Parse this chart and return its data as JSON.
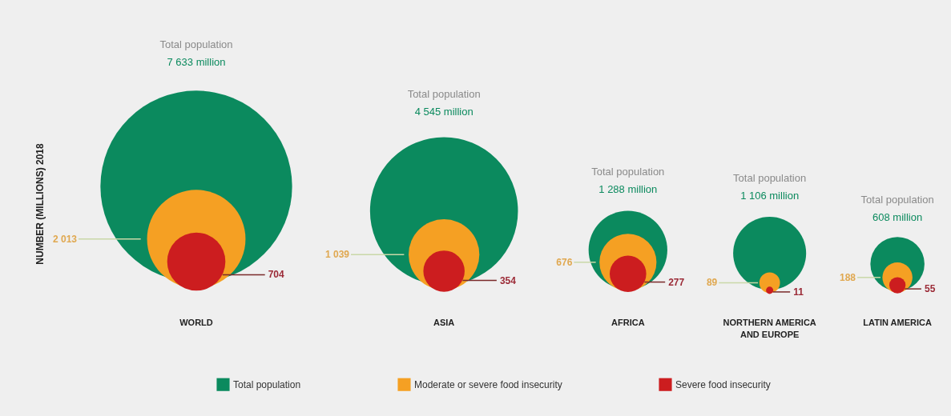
{
  "chart_data": {
    "type": "other",
    "ylabel": "NUMBER (MILLIONS) 2018",
    "categories": [
      "WORLD",
      "ASIA",
      "AFRICA",
      "NORTHERN AMERICA AND EUROPE",
      "LATIN AMERICA"
    ],
    "series": [
      {
        "name": "Total population",
        "color": "#0b8a5e",
        "values": [
          7633,
          4545,
          1288,
          1106,
          608
        ],
        "value_labels": [
          "7 633 million",
          "4 545 million",
          "1 288 million",
          "1 106 million",
          "608 million"
        ]
      },
      {
        "name": "Moderate or severe food insecurity",
        "color": "#f5a023",
        "values": [
          2013,
          1039,
          676,
          89,
          188
        ],
        "value_labels": [
          "2 013",
          "1 039",
          "676",
          "89",
          "188"
        ]
      },
      {
        "name": "Severe food insecurity",
        "color": "#cc1d1f",
        "values": [
          704,
          354,
          277,
          11,
          55
        ],
        "value_labels": [
          "704",
          "354",
          "277",
          "11",
          "55"
        ]
      }
    ],
    "legend": "bottom"
  }
}
